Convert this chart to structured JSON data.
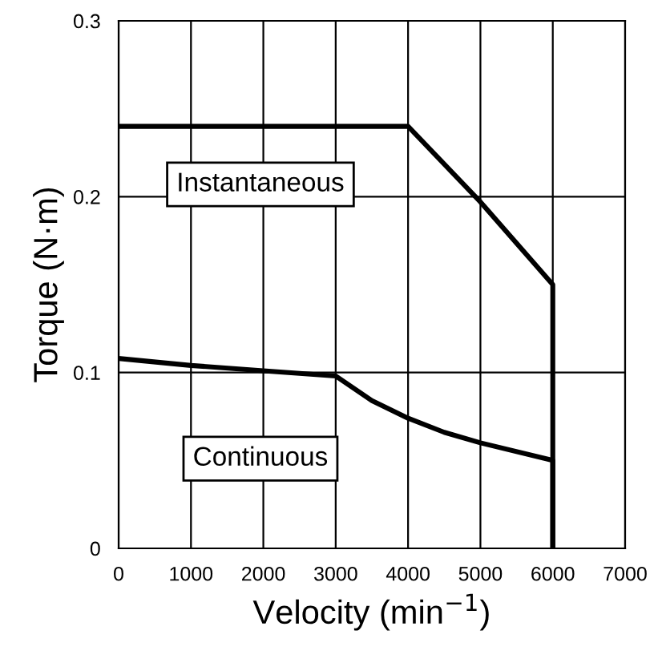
{
  "chart_data": {
    "type": "line",
    "xlabel": "Velocity (min$^{−1}$)",
    "ylabel": "Torque (N·m)",
    "xlim": [
      0,
      7000
    ],
    "ylim": [
      0,
      0.3
    ],
    "xticks": [
      0,
      1000,
      2000,
      3000,
      4000,
      5000,
      6000,
      7000
    ],
    "yticks": [
      0,
      0.1,
      0.2,
      0.3
    ],
    "grid": true,
    "legend": false,
    "marker": "none",
    "line_style": "solid",
    "series": [
      {
        "name": "Instantaneous",
        "color": "#000000",
        "x": [
          0,
          4000,
          5000,
          6000,
          6000
        ],
        "values": [
          0.24,
          0.24,
          0.197,
          0.15,
          0
        ]
      },
      {
        "name": "Continuous",
        "color": "#000000",
        "x": [
          0,
          1000,
          2000,
          3000,
          3500,
          4000,
          4500,
          5000,
          6000,
          6000
        ],
        "values": [
          0.108,
          0.104,
          0.101,
          0.098,
          0.084,
          0.074,
          0.066,
          0.06,
          0.05,
          0
        ]
      }
    ]
  }
}
